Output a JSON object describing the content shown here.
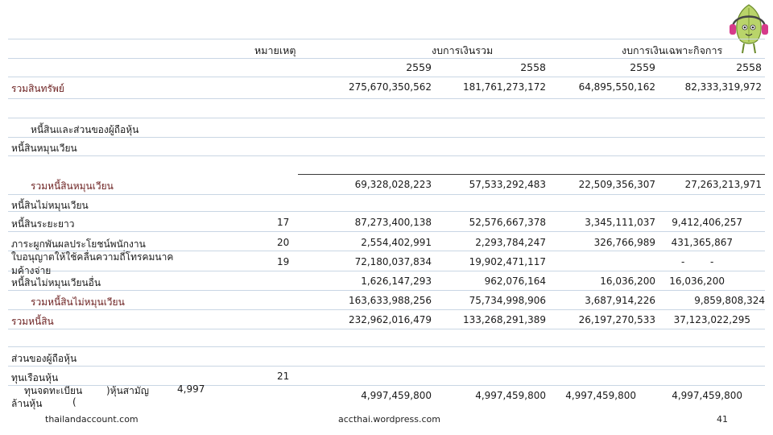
{
  "header": {
    "note": "หมายเหตุ",
    "consolidated": "งบการเงินรวม",
    "separate": "งบการเงินเฉพาะกิจการ",
    "years": [
      "2559",
      "2558",
      "2559",
      "2558"
    ]
  },
  "rows": [
    {
      "label": "รวมสินทรัพย์",
      "note": "",
      "values": [
        "275,670,350,562",
        "181,761,273,172",
        "64,895,550,162",
        "82,333,319,972"
      ]
    },
    {
      "label": "หนี้สินและส่วนของผู้ถือหุ้น",
      "note": "",
      "values": [
        "",
        "",
        "",
        ""
      ]
    },
    {
      "label": "หนี้สินหมุนเวียน",
      "note": "",
      "values": [
        "",
        "",
        "",
        ""
      ]
    },
    {
      "label": "รวมหนี้สินหมุนเวียน",
      "note": "",
      "values": [
        "69,328,028,223",
        "57,533,292,483",
        "22,509,356,307",
        "27,263,213,971"
      ]
    },
    {
      "label": "หนี้สินไม่หมุนเวียน",
      "note": "",
      "values": [
        "",
        "",
        "",
        ""
      ]
    },
    {
      "label": "หนี้สินระยะยาว",
      "note": "17",
      "values": [
        "87,273,400,138",
        "52,576,667,378",
        "3,345,111,037",
        "9,412,406,257"
      ]
    },
    {
      "label": "ภาระผูกพันผลประโยชน์พนักงาน",
      "note": "20",
      "values": [
        "2,554,402,991",
        "2,293,784,247",
        "326,766,989",
        "431,365,867"
      ]
    },
    {
      "label": "ใบอนุญาตให้ใช้คลื่นความถี่โทรคมนาค",
      "label2": "มค้างจ่าย",
      "note": "19",
      "values": [
        "72,180,037,834",
        "19,902,471,117",
        "",
        "-"
      ],
      "dash2": "-"
    },
    {
      "label": "หนี้สินไม่หมุนเวียนอื่น",
      "note": "",
      "values": [
        "1,626,147,293",
        "962,076,164",
        "16,036,200",
        "16,036,200"
      ]
    },
    {
      "label": "รวมหนี้สินไม่หมุนเวียน",
      "note": "",
      "values": [
        "163,633,988,256",
        "75,734,998,906",
        "3,687,914,226",
        "9,859,808,324"
      ]
    },
    {
      "label": "รวมหนี้สิน",
      "note": "",
      "values": [
        "232,962,016,479",
        "133,268,291,389",
        "26,197,270,533",
        "37,123,022,295"
      ]
    },
    {
      "label": "ส่วนของผู้ถือหุ้น",
      "note": "",
      "values": [
        "",
        "",
        "",
        ""
      ]
    },
    {
      "label": "ทุนเรือนหุ้น",
      "note": "21",
      "values": [
        "",
        "",
        "",
        ""
      ]
    },
    {
      "label": "ทุนจดทะเบียน",
      "inline1": ")หุ้นสามัญ",
      "inline2": "4,997",
      "note": "",
      "values": [
        "4,997,459,800",
        "4,997,459,800",
        "4,997,459,800",
        "4,997,459,800"
      ]
    },
    {
      "label": "ล้านหุ้น",
      "inline1": "(",
      "note": "",
      "values": [
        "",
        "",
        "",
        ""
      ]
    }
  ],
  "footer": {
    "left": "thailandaccount.com",
    "center": "accthai.wordpress.com",
    "page": "41"
  },
  "colors": {
    "maroon": "#6b1f1f",
    "rule": "#c9d6e4",
    "mascot_green": "#b9d46a",
    "headphones": "#d63a8a"
  },
  "icons": {
    "mascot": "leaf-mascot-with-headphones-icon"
  }
}
